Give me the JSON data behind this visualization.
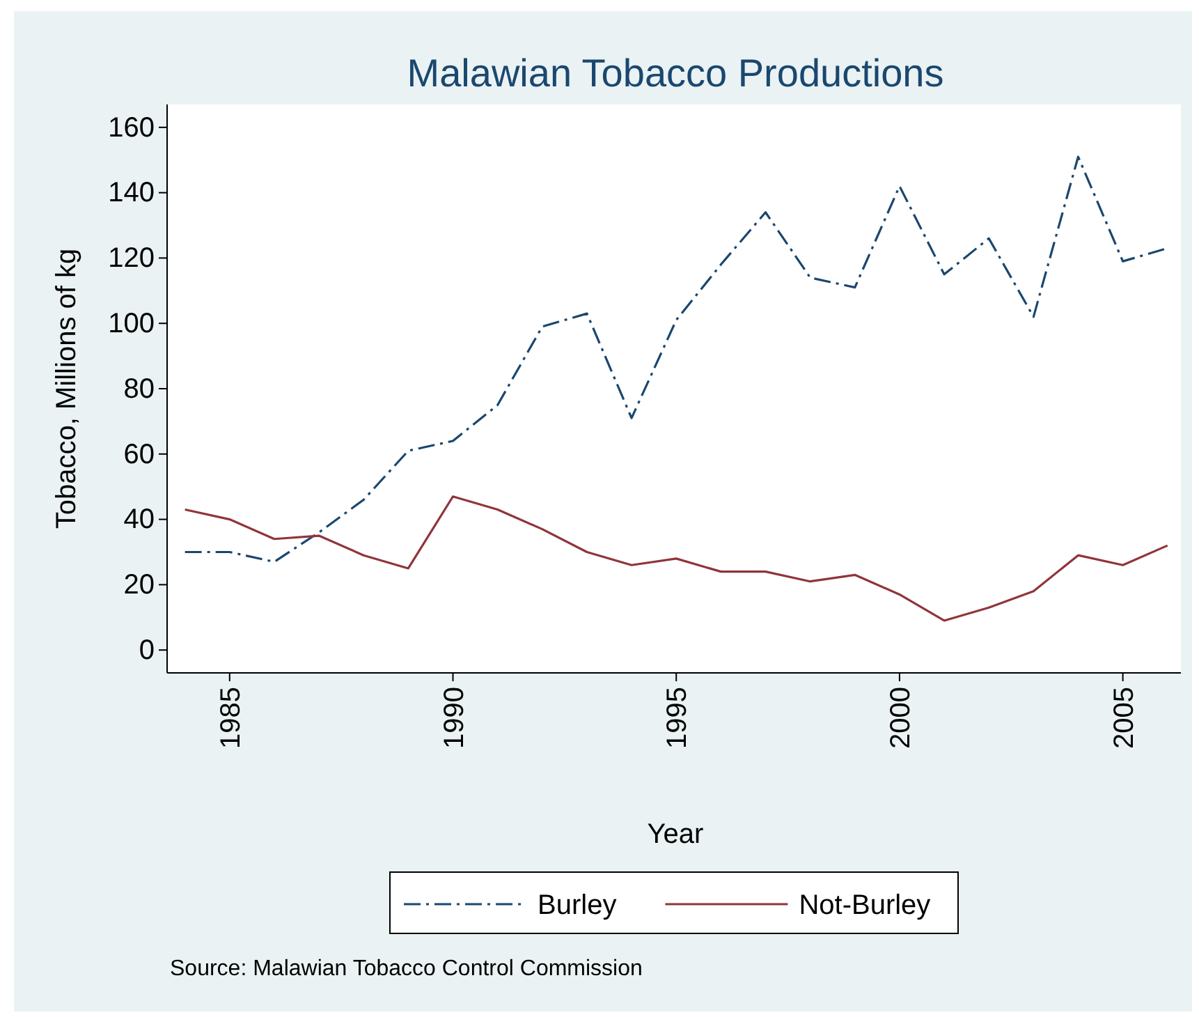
{
  "chart_data": {
    "type": "line",
    "title": "Malawian Tobacco Productions",
    "xlabel": "Year",
    "ylabel": "Tobacco, Millions of kg",
    "x": [
      1984,
      1985,
      1986,
      1987,
      1988,
      1989,
      1990,
      1991,
      1992,
      1993,
      1994,
      1995,
      1996,
      1997,
      1998,
      1999,
      2000,
      2001,
      2002,
      2003,
      2004,
      2005,
      2006
    ],
    "series": [
      {
        "name": "Burley",
        "color": "#1a476f",
        "line_style": "dashdot",
        "values": [
          30,
          30,
          27,
          36,
          46,
          61,
          64,
          75,
          99,
          103,
          71,
          101,
          118,
          134,
          114,
          111,
          142,
          115,
          126,
          102,
          151,
          119,
          123
        ]
      },
      {
        "name": "Not-Burley",
        "color": "#90353b",
        "line_style": "solid",
        "values": [
          43,
          40,
          34,
          35,
          29,
          25,
          47,
          43,
          37,
          30,
          26,
          28,
          24,
          24,
          21,
          23,
          17,
          9,
          13,
          18,
          29,
          26,
          32
        ]
      }
    ],
    "xlim": [
      1983.6,
      2006.3
    ],
    "ylim": [
      -7,
      167
    ],
    "xticks": [
      1985,
      1990,
      1995,
      2000,
      2005
    ],
    "yticks": [
      0,
      20,
      40,
      60,
      80,
      100,
      120,
      140,
      160
    ],
    "grid": false,
    "legend": "bottom",
    "marker": "none",
    "annotations": [
      "Source: Malawian Tobacco Control Commission"
    ]
  }
}
